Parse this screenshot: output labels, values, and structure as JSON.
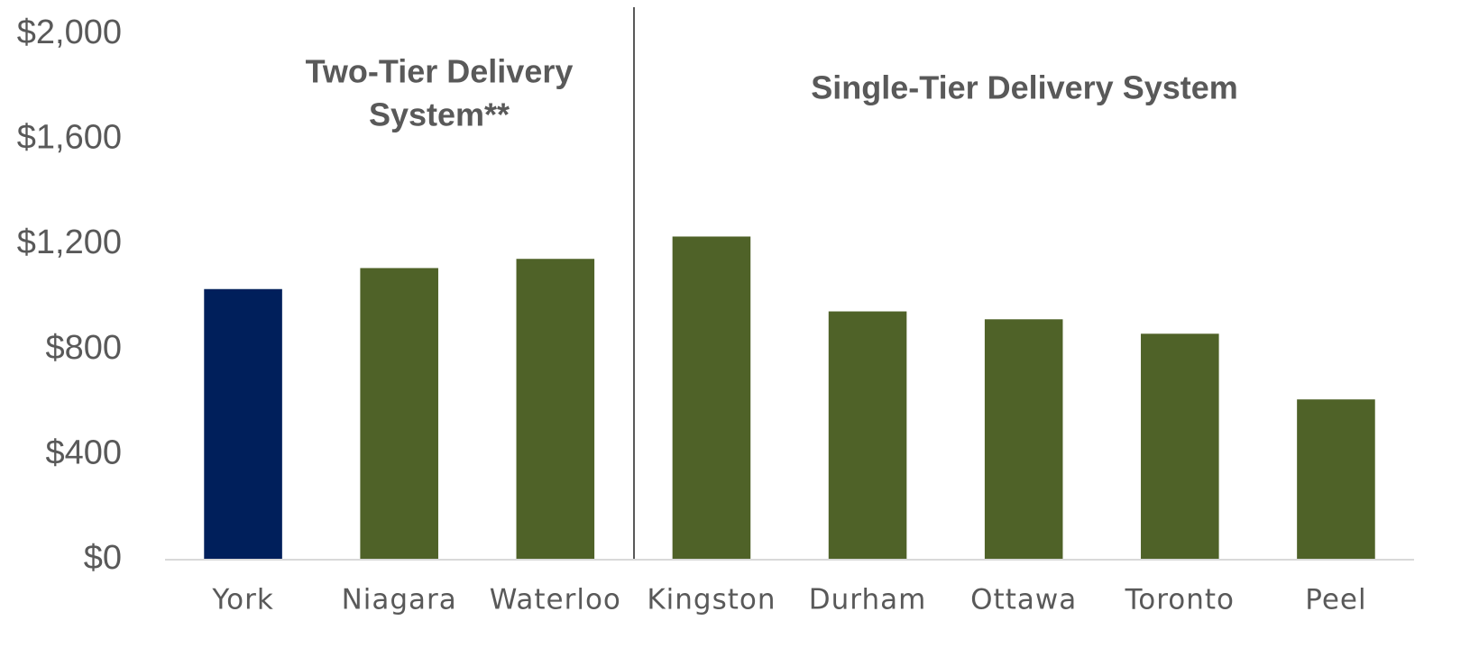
{
  "chart_data": {
    "type": "bar",
    "categories": [
      "York",
      "Niagara",
      "Waterloo",
      "Kingston",
      "Durham",
      "Ottawa",
      "Toronto",
      "Peel"
    ],
    "values": [
      1030,
      1110,
      1145,
      1230,
      945,
      915,
      860,
      610
    ],
    "colors": [
      "#001f5b",
      "#4f6228",
      "#4f6228",
      "#4f6228",
      "#4f6228",
      "#4f6228",
      "#4f6228",
      "#4f6228"
    ],
    "ylim": [
      0,
      2000
    ],
    "yticks": [
      {
        "value": 0,
        "label": "$0"
      },
      {
        "value": 400,
        "label": "$400"
      },
      {
        "value": 800,
        "label": "$800"
      },
      {
        "value": 1200,
        "label": "$1,200"
      },
      {
        "value": 1600,
        "label": "$1,600"
      },
      {
        "value": 2000,
        "label": "$2,000"
      }
    ],
    "annotations": [
      [
        "Two-Tier Delivery",
        "System**"
      ],
      [
        "Single-Tier Delivery System"
      ]
    ],
    "grid": false
  }
}
